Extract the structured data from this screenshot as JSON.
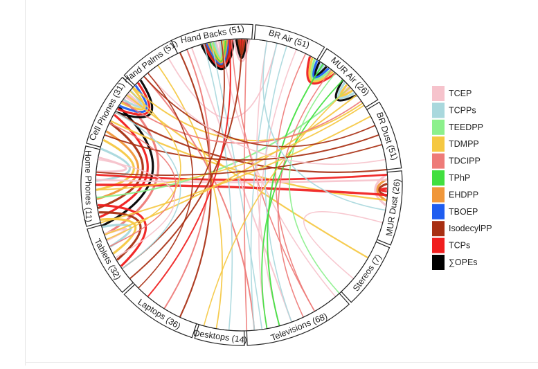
{
  "segments": [
    {
      "id": "hand_backs",
      "label": "Hand Backs (51)"
    },
    {
      "id": "br_air",
      "label": "BR Air (51)"
    },
    {
      "id": "mur_air",
      "label": "MUR Air (26)"
    },
    {
      "id": "br_dust",
      "label": "BR Dust (51)"
    },
    {
      "id": "mur_dust",
      "label": "MUR Dust (26)"
    },
    {
      "id": "stereos",
      "label": "Stereos (7)"
    },
    {
      "id": "televisions",
      "label": "Televisions (68)"
    },
    {
      "id": "desktops",
      "label": "Desktops (14)"
    },
    {
      "id": "laptops",
      "label": "Laptops (36)"
    },
    {
      "id": "tablets",
      "label": "Tablets (32)"
    },
    {
      "id": "home_phones",
      "label": "Home Phones (11)"
    },
    {
      "id": "cell_phones",
      "label": "Cell Phones (31)"
    },
    {
      "id": "hand_palms",
      "label": "Hand Palms (51)"
    }
  ],
  "legend": [
    {
      "label": "TCEP",
      "color": "#f6c3cc"
    },
    {
      "label": "TCPPs",
      "color": "#a9d8dd"
    },
    {
      "label": "TEEDPP",
      "color": "#8cf08c"
    },
    {
      "label": "TDMPP",
      "color": "#f5c842"
    },
    {
      "label": "TDCIPP",
      "color": "#ee7b78"
    },
    {
      "label": "TPhP",
      "color": "#41df3f"
    },
    {
      "label": "EHDPP",
      "color": "#f0973a"
    },
    {
      "label": "TBOEP",
      "color": "#1f5df0"
    },
    {
      "label": "IsodecylPP",
      "color": "#a82f12"
    },
    {
      "label": "TCPs",
      "color": "#f01e1e"
    },
    {
      "label": "∑OPEs",
      "color": "#000000"
    }
  ]
}
